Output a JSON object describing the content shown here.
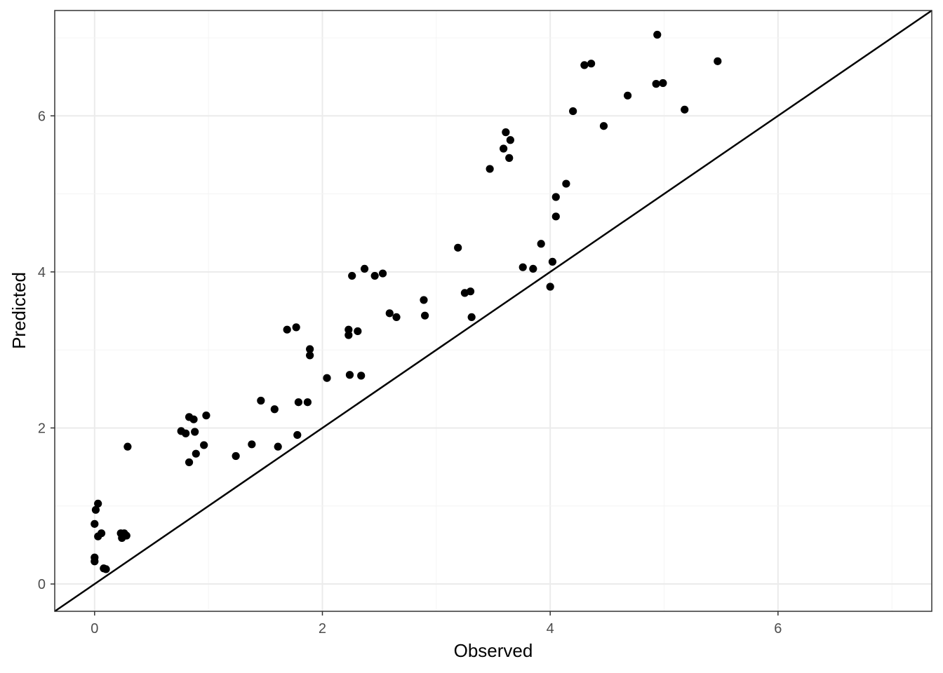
{
  "chart_data": {
    "type": "scatter",
    "title": "",
    "xlabel": "Observed",
    "ylabel": "Predicted",
    "xlim": [
      -0.35,
      7.35
    ],
    "ylim": [
      -0.35,
      7.35
    ],
    "x_ticks": [
      0,
      2,
      4,
      6
    ],
    "y_ticks": [
      0,
      2,
      4,
      6
    ],
    "grid": true,
    "reference_line": {
      "type": "identity",
      "slope": 1,
      "intercept": 0
    },
    "colors": {
      "points": "#000000",
      "reference_line": "#000000",
      "grid_major": "#ebebeb",
      "grid_minor": "#f4f4f4",
      "panel_border": "#333333"
    },
    "points": [
      {
        "x": 0.0,
        "y": 0.34
      },
      {
        "x": 0.0,
        "y": 0.29
      },
      {
        "x": 0.0,
        "y": 0.77
      },
      {
        "x": 0.01,
        "y": 0.95
      },
      {
        "x": 0.03,
        "y": 1.03
      },
      {
        "x": 0.03,
        "y": 0.61
      },
      {
        "x": 0.06,
        "y": 0.65
      },
      {
        "x": 0.08,
        "y": 0.2
      },
      {
        "x": 0.1,
        "y": 0.19
      },
      {
        "x": 0.23,
        "y": 0.65
      },
      {
        "x": 0.24,
        "y": 0.59
      },
      {
        "x": 0.26,
        "y": 0.65
      },
      {
        "x": 0.28,
        "y": 0.62
      },
      {
        "x": 0.29,
        "y": 1.76
      },
      {
        "x": 0.76,
        "y": 1.96
      },
      {
        "x": 0.8,
        "y": 1.93
      },
      {
        "x": 0.83,
        "y": 2.14
      },
      {
        "x": 0.83,
        "y": 1.56
      },
      {
        "x": 0.87,
        "y": 2.11
      },
      {
        "x": 0.88,
        "y": 1.95
      },
      {
        "x": 0.89,
        "y": 1.67
      },
      {
        "x": 0.96,
        "y": 1.78
      },
      {
        "x": 0.98,
        "y": 2.16
      },
      {
        "x": 1.24,
        "y": 1.64
      },
      {
        "x": 1.38,
        "y": 1.79
      },
      {
        "x": 1.46,
        "y": 2.35
      },
      {
        "x": 1.58,
        "y": 2.24
      },
      {
        "x": 1.61,
        "y": 1.76
      },
      {
        "x": 1.69,
        "y": 3.26
      },
      {
        "x": 1.77,
        "y": 3.29
      },
      {
        "x": 1.78,
        "y": 1.91
      },
      {
        "x": 1.79,
        "y": 2.33
      },
      {
        "x": 1.87,
        "y": 2.33
      },
      {
        "x": 1.89,
        "y": 3.01
      },
      {
        "x": 1.89,
        "y": 2.93
      },
      {
        "x": 2.04,
        "y": 2.64
      },
      {
        "x": 2.23,
        "y": 3.26
      },
      {
        "x": 2.23,
        "y": 3.19
      },
      {
        "x": 2.24,
        "y": 2.68
      },
      {
        "x": 2.26,
        "y": 3.95
      },
      {
        "x": 2.31,
        "y": 3.24
      },
      {
        "x": 2.34,
        "y": 2.67
      },
      {
        "x": 2.37,
        "y": 4.04
      },
      {
        "x": 2.46,
        "y": 3.95
      },
      {
        "x": 2.53,
        "y": 3.98
      },
      {
        "x": 2.59,
        "y": 3.47
      },
      {
        "x": 2.65,
        "y": 3.42
      },
      {
        "x": 2.89,
        "y": 3.64
      },
      {
        "x": 2.9,
        "y": 3.44
      },
      {
        "x": 3.19,
        "y": 4.31
      },
      {
        "x": 3.25,
        "y": 3.73
      },
      {
        "x": 3.3,
        "y": 3.75
      },
      {
        "x": 3.31,
        "y": 3.42
      },
      {
        "x": 3.47,
        "y": 5.32
      },
      {
        "x": 3.59,
        "y": 5.58
      },
      {
        "x": 3.61,
        "y": 5.79
      },
      {
        "x": 3.64,
        "y": 5.46
      },
      {
        "x": 3.65,
        "y": 5.69
      },
      {
        "x": 3.76,
        "y": 4.06
      },
      {
        "x": 3.85,
        "y": 4.04
      },
      {
        "x": 3.92,
        "y": 4.36
      },
      {
        "x": 4.0,
        "y": 3.81
      },
      {
        "x": 4.02,
        "y": 4.13
      },
      {
        "x": 4.05,
        "y": 4.96
      },
      {
        "x": 4.05,
        "y": 4.71
      },
      {
        "x": 4.14,
        "y": 5.13
      },
      {
        "x": 4.2,
        "y": 6.06
      },
      {
        "x": 4.3,
        "y": 6.65
      },
      {
        "x": 4.36,
        "y": 6.67
      },
      {
        "x": 4.47,
        "y": 5.87
      },
      {
        "x": 4.68,
        "y": 6.26
      },
      {
        "x": 4.93,
        "y": 6.41
      },
      {
        "x": 4.94,
        "y": 7.04
      },
      {
        "x": 4.99,
        "y": 6.42
      },
      {
        "x": 5.18,
        "y": 6.08
      },
      {
        "x": 5.47,
        "y": 6.7
      }
    ]
  }
}
